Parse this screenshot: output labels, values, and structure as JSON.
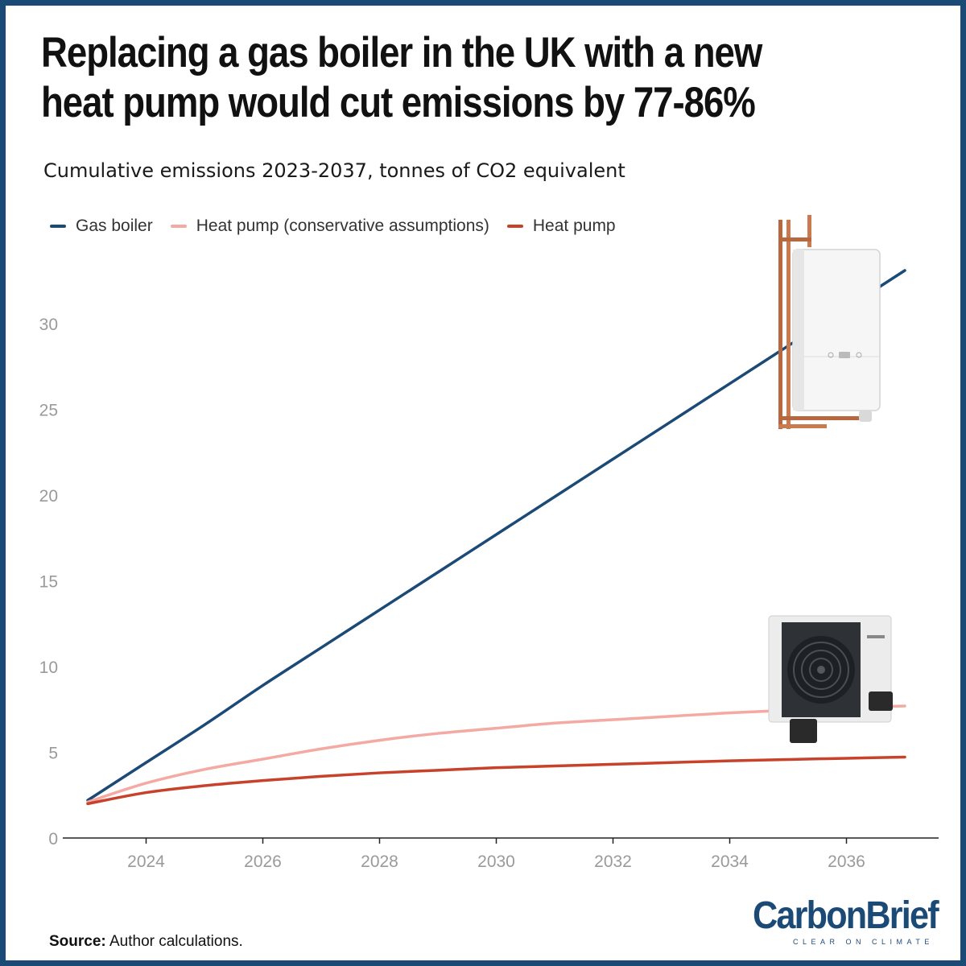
{
  "title": "Replacing a gas boiler in the UK with a new heat pump would cut emissions by 77-86%",
  "subtitle": "Cumulative emissions 2023-2037, tonnes of CO2 equivalent",
  "legend": [
    {
      "label": "Gas boiler",
      "color": "#1c4a77"
    },
    {
      "label": "Heat pump (conservative assumptions)",
      "color": "#f4a9a3"
    },
    {
      "label": "Heat pump",
      "color": "#c8412b"
    }
  ],
  "source": {
    "label": "Source:",
    "text": "Author calculations."
  },
  "logo": {
    "word": "CarbonBrief",
    "tagline": "CLEAR ON CLIMATE"
  },
  "images": {
    "boiler": "gas-boiler-photo",
    "heat_pump": "heat-pump-unit-photo"
  },
  "chart_data": {
    "type": "line",
    "title": "",
    "xlabel": "",
    "ylabel": "",
    "xlim": [
      2023,
      2037
    ],
    "ylim": [
      0,
      35
    ],
    "x_ticks": [
      2024,
      2026,
      2028,
      2030,
      2032,
      2034,
      2036
    ],
    "y_ticks": [
      0,
      5,
      10,
      15,
      20,
      25,
      30
    ],
    "grid": false,
    "legend_position": "top-left",
    "x": [
      2023,
      2024,
      2025,
      2026,
      2027,
      2028,
      2029,
      2030,
      2031,
      2032,
      2033,
      2034,
      2035,
      2036,
      2037
    ],
    "series": [
      {
        "name": "Gas boiler",
        "color": "#1c4a77",
        "values": [
          2.2,
          4.4,
          6.6,
          8.9,
          11.1,
          13.3,
          15.5,
          17.7,
          19.9,
          22.1,
          24.3,
          26.5,
          28.7,
          30.9,
          33.1
        ]
      },
      {
        "name": "Heat pump (conservative assumptions)",
        "color": "#f4a9a3",
        "values": [
          2.1,
          3.2,
          4.0,
          4.6,
          5.2,
          5.7,
          6.1,
          6.4,
          6.7,
          6.9,
          7.1,
          7.3,
          7.45,
          7.6,
          7.7
        ]
      },
      {
        "name": "Heat pump",
        "color": "#c8412b",
        "values": [
          2.0,
          2.65,
          3.05,
          3.35,
          3.6,
          3.8,
          3.95,
          4.1,
          4.2,
          4.3,
          4.4,
          4.5,
          4.58,
          4.65,
          4.72
        ]
      }
    ]
  }
}
